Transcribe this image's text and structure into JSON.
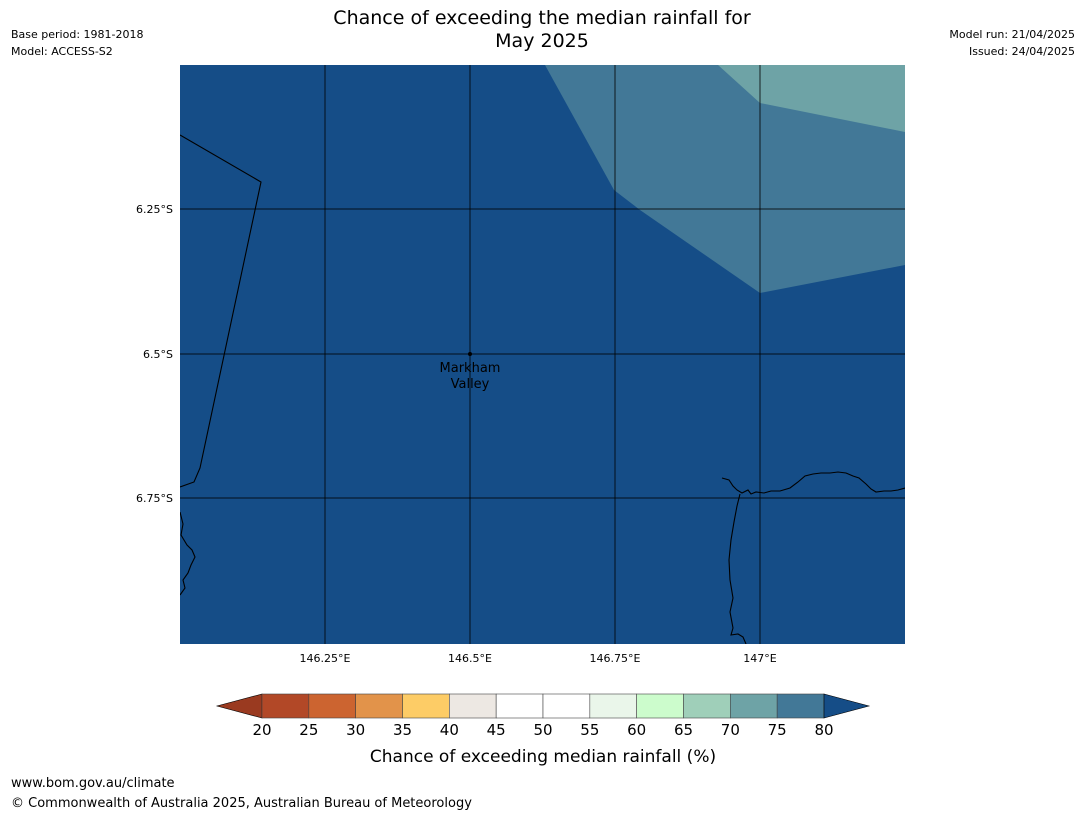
{
  "title": {
    "line1": "Chance of exceeding the median rainfall for",
    "line2": "May 2025"
  },
  "meta": {
    "base_period": "Base period: 1981-2018",
    "model": "Model: ACCESS-S2",
    "model_run": "Model run: 21/04/2025",
    "issued": "Issued: 24/04/2025"
  },
  "map": {
    "background_color": "#154d87",
    "lon_ticks": [
      "146.25°E",
      "146.5°E",
      "146.75°E",
      "147°E"
    ],
    "lat_ticks": [
      "6.25°S",
      "6.5°S",
      "6.75°S"
    ],
    "place": {
      "name_line1": "Markham",
      "name_line2": "Valley"
    }
  },
  "legend": {
    "tick_labels": [
      "20",
      "25",
      "30",
      "35",
      "40",
      "45",
      "50",
      "55",
      "60",
      "65",
      "70",
      "75",
      "80"
    ],
    "below_color": "#9a3a20",
    "above_color": "#154d87",
    "bin_colors": [
      "#b24827",
      "#cc6430",
      "#e2934a",
      "#fdcc66",
      "#ede8e3",
      "#ffffff",
      "#ffffff",
      "#eaf6ea",
      "#ccfccc",
      "#9fcfb9",
      "#6ea3a6",
      "#427897"
    ],
    "label": "Chance of exceeding median rainfall (%)"
  },
  "footer": {
    "url": "www.bom.gov.au/climate",
    "copyright": "© Commonwealth of Australia 2025, Australian Bureau of Meteorology"
  }
}
